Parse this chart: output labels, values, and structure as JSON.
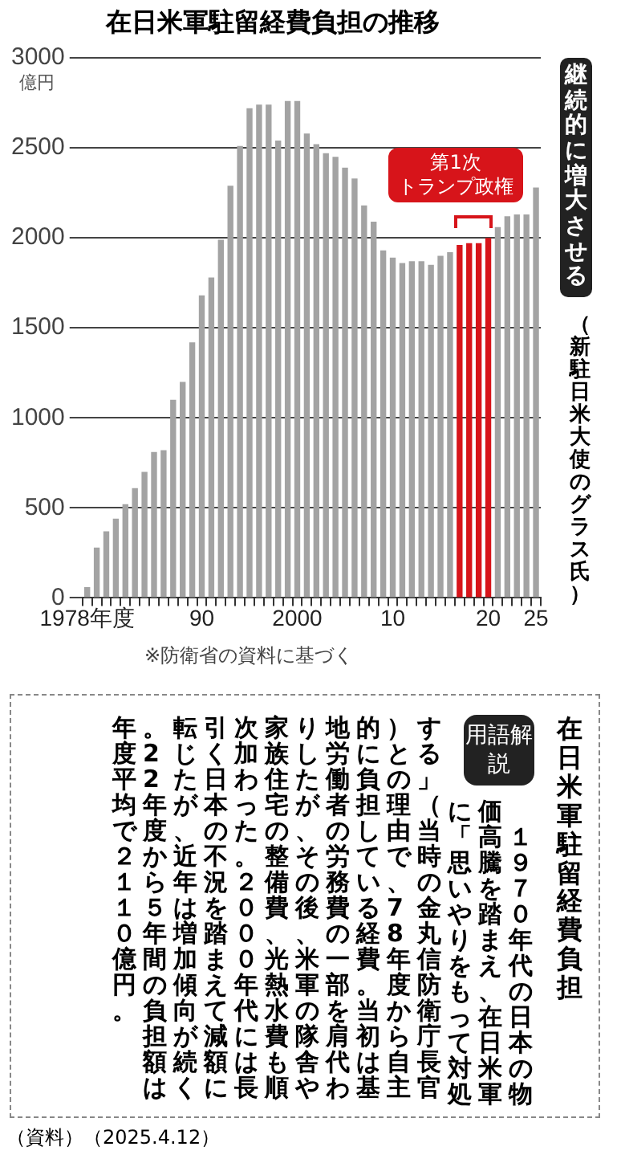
{
  "chart_data": {
    "type": "bar",
    "title": "在日米軍駐留経費負担の推移",
    "ylabel": "億円",
    "categories": [
      "1978年度",
      null,
      null,
      null,
      null,
      null,
      null,
      null,
      null,
      null,
      null,
      null,
      "90",
      null,
      null,
      null,
      null,
      null,
      null,
      null,
      null,
      null,
      "2000",
      null,
      null,
      null,
      null,
      null,
      null,
      null,
      null,
      null,
      "10",
      null,
      null,
      null,
      null,
      null,
      null,
      null,
      null,
      null,
      "20",
      null,
      null,
      null,
      null,
      "25"
    ],
    "values": [
      60,
      280,
      370,
      440,
      520,
      610,
      700,
      810,
      820,
      1100,
      1200,
      1420,
      1680,
      1780,
      1990,
      2290,
      2510,
      2720,
      2740,
      2740,
      2540,
      2760,
      2760,
      2580,
      2520,
      2470,
      2450,
      2390,
      2330,
      2180,
      2090,
      1930,
      1890,
      1860,
      1870,
      1870,
      1850,
      1900,
      1920,
      1960,
      1970,
      1970,
      2000,
      2060,
      2120,
      2130,
      2130,
      2280
    ],
    "colors": [
      "#a3a3a3",
      "#a3a3a3",
      "#a3a3a3",
      "#a3a3a3",
      "#a3a3a3",
      "#a3a3a3",
      "#a3a3a3",
      "#a3a3a3",
      "#a3a3a3",
      "#a3a3a3",
      "#a3a3a3",
      "#a3a3a3",
      "#a3a3a3",
      "#a3a3a3",
      "#a3a3a3",
      "#a3a3a3",
      "#a3a3a3",
      "#a3a3a3",
      "#a3a3a3",
      "#a3a3a3",
      "#a3a3a3",
      "#a3a3a3",
      "#a3a3a3",
      "#a3a3a3",
      "#a3a3a3",
      "#a3a3a3",
      "#a3a3a3",
      "#a3a3a3",
      "#a3a3a3",
      "#a3a3a3",
      "#a3a3a3",
      "#a3a3a3",
      "#a3a3a3",
      "#a3a3a3",
      "#a3a3a3",
      "#a3a3a3",
      "#a3a3a3",
      "#a3a3a3",
      "#a3a3a3",
      "#d7141a",
      "#d7141a",
      "#d7141a",
      "#d7141a",
      "#a3a3a3",
      "#a3a3a3",
      "#a3a3a3",
      "#a3a3a3",
      "#a3a3a3"
    ],
    "ylim": [
      0,
      3000
    ],
    "yticks": [
      0,
      500,
      1000,
      1500,
      2000,
      2500,
      3000
    ],
    "grid": "y",
    "legend": false,
    "annotations": [
      "第1次",
      "トランプ政権",
      "継続的に増大させる",
      "（新駐日米大使のグラス氏）",
      "※防衛省の資料に基づく",
      "在日米軍駐留経費負担",
      "用語解説",
      "　１９７０年代の日本の物価高騰を踏まえ、在日米軍に「思いやりをもって対処する」（当時の金丸信防衛庁長官）との理由で、78年度から自主的に負担している経費。当初は基地労働者の労務費の一部を肩代わりしたが、その後、米軍の隊舎や家族住宅の整備費、光熱水費も順次加わった。２０００年代には長引く日本の不況を踏まえて減額に転じたが、近年は増加傾向が続く。22年度から５年間の負担額は年度平均で２１１０億円。",
      "（資料）（2025.4.12）"
    ]
  }
}
